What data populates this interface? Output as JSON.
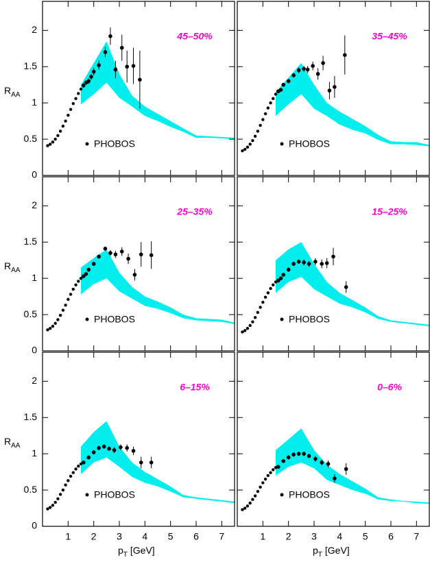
{
  "chart_data": [
    {
      "type": "scatter",
      "label": "45–50%",
      "label_color": "#ff00cc",
      "ylabel": "R",
      "ylabel_sub": "AA",
      "show_ytick_labels": true,
      "show_xtick_labels": false,
      "xlim": [
        0,
        7.5
      ],
      "ylim": [
        0,
        2.4
      ],
      "xticks": [
        1,
        2,
        3,
        4,
        5,
        6,
        7
      ],
      "yticks": [
        0,
        0.5,
        1,
        1.5,
        2
      ],
      "band": {
        "color": "#00eeee",
        "x": [
          1.5,
          2,
          2.5,
          3,
          3.5,
          4,
          4.5,
          5,
          5.5,
          6,
          6.5,
          7,
          7.5
        ],
        "upper": [
          1.25,
          1.55,
          1.85,
          1.4,
          1.1,
          0.95,
          0.85,
          0.75,
          0.65,
          0.55,
          0.54,
          0.53,
          0.52
        ],
        "lower": [
          0.98,
          1.12,
          1.28,
          1.07,
          0.95,
          0.82,
          0.75,
          0.67,
          0.6,
          0.52,
          0.52,
          0.51,
          0.5
        ]
      },
      "series": [
        {
          "name": "PHOBOS",
          "color": "#000000",
          "x": [
            0.2,
            0.3,
            0.4,
            0.5,
            0.6,
            0.7,
            0.8,
            0.9,
            1.0,
            1.1,
            1.2,
            1.3,
            1.4,
            1.5,
            1.6,
            1.7,
            1.8,
            1.9,
            2.0,
            2.2,
            2.45,
            2.65,
            2.85,
            3.1,
            3.3,
            3.55,
            3.8
          ],
          "values": [
            0.41,
            0.43,
            0.46,
            0.5,
            0.55,
            0.61,
            0.68,
            0.75,
            0.83,
            0.91,
            0.99,
            1.06,
            1.13,
            1.19,
            1.24,
            1.28,
            1.3,
            1.36,
            1.43,
            1.52,
            1.7,
            1.92,
            1.46,
            1.76,
            1.5,
            1.51,
            1.32
          ],
          "errors": [
            0.01,
            0.01,
            0.01,
            0.01,
            0.01,
            0.01,
            0.01,
            0.01,
            0.01,
            0.01,
            0.01,
            0.01,
            0.01,
            0.01,
            0.03,
            0.03,
            0.04,
            0.04,
            0.05,
            0.06,
            0.07,
            0.12,
            0.12,
            0.18,
            0.22,
            0.25,
            0.4
          ]
        }
      ]
    },
    {
      "type": "scatter",
      "label": "35–45%",
      "label_color": "#ff00cc",
      "show_ytick_labels": false,
      "show_xtick_labels": false,
      "xlim": [
        0,
        7.5
      ],
      "ylim": [
        0,
        2.4
      ],
      "xticks": [
        1,
        2,
        3,
        4,
        5,
        6,
        7
      ],
      "yticks": [
        0,
        0.5,
        1,
        1.5,
        2
      ],
      "band": {
        "color": "#00eeee",
        "x": [
          1.5,
          2,
          2.5,
          3,
          3.5,
          4,
          4.5,
          5,
          5.5,
          6,
          6.5,
          7,
          7.5
        ],
        "upper": [
          1.15,
          1.35,
          1.55,
          1.25,
          1.0,
          0.88,
          0.78,
          0.68,
          0.56,
          0.47,
          0.46,
          0.46,
          0.42
        ],
        "lower": [
          0.82,
          0.98,
          1.12,
          0.92,
          0.82,
          0.7,
          0.63,
          0.58,
          0.49,
          0.43,
          0.43,
          0.42,
          0.4
        ]
      },
      "series": [
        {
          "name": "PHOBOS",
          "color": "#000000",
          "x": [
            0.2,
            0.3,
            0.4,
            0.5,
            0.6,
            0.7,
            0.8,
            0.9,
            1.0,
            1.1,
            1.2,
            1.3,
            1.4,
            1.5,
            1.6,
            1.7,
            1.8,
            2.0,
            2.2,
            2.4,
            2.6,
            2.75,
            2.95,
            3.15,
            3.35,
            3.6,
            3.8,
            4.2
          ],
          "values": [
            0.34,
            0.36,
            0.39,
            0.43,
            0.48,
            0.54,
            0.61,
            0.69,
            0.77,
            0.85,
            0.93,
            1.0,
            1.06,
            1.12,
            1.16,
            1.18,
            1.25,
            1.3,
            1.38,
            1.45,
            1.47,
            1.46,
            1.51,
            1.4,
            1.55,
            1.17,
            1.22,
            1.66
          ],
          "errors": [
            0.01,
            0.01,
            0.01,
            0.01,
            0.01,
            0.01,
            0.01,
            0.01,
            0.01,
            0.01,
            0.01,
            0.01,
            0.01,
            0.01,
            0.02,
            0.02,
            0.02,
            0.03,
            0.03,
            0.04,
            0.04,
            0.05,
            0.06,
            0.08,
            0.1,
            0.12,
            0.15,
            0.27
          ]
        }
      ]
    },
    {
      "type": "scatter",
      "label": "25–35%",
      "label_color": "#ff00cc",
      "ylabel": "R",
      "ylabel_sub": "AA",
      "show_ytick_labels": true,
      "show_xtick_labels": false,
      "xlim": [
        0,
        7.5
      ],
      "ylim": [
        0,
        2.4
      ],
      "xticks": [
        1,
        2,
        3,
        4,
        5,
        6,
        7
      ],
      "yticks": [
        0,
        0.5,
        1,
        1.5,
        2
      ],
      "band": {
        "color": "#00eeee",
        "x": [
          1.5,
          2,
          2.5,
          3,
          3.5,
          4,
          4.5,
          5,
          5.5,
          6,
          6.5,
          7,
          7.5
        ],
        "upper": [
          1.15,
          1.28,
          1.4,
          1.08,
          0.88,
          0.75,
          0.68,
          0.6,
          0.5,
          0.45,
          0.44,
          0.43,
          0.39
        ],
        "lower": [
          0.78,
          0.92,
          1.0,
          0.82,
          0.72,
          0.62,
          0.58,
          0.52,
          0.45,
          0.42,
          0.41,
          0.4,
          0.37
        ]
      },
      "series": [
        {
          "name": "PHOBOS",
          "color": "#000000",
          "x": [
            0.2,
            0.3,
            0.4,
            0.5,
            0.6,
            0.7,
            0.8,
            0.9,
            1.0,
            1.1,
            1.2,
            1.3,
            1.4,
            1.5,
            1.6,
            1.7,
            1.8,
            2.0,
            2.2,
            2.45,
            2.65,
            2.85,
            3.1,
            3.35,
            3.6,
            3.85,
            4.25
          ],
          "values": [
            0.29,
            0.31,
            0.34,
            0.38,
            0.43,
            0.49,
            0.56,
            0.63,
            0.71,
            0.78,
            0.85,
            0.91,
            0.96,
            1.0,
            1.03,
            1.06,
            1.12,
            1.2,
            1.3,
            1.41,
            1.35,
            1.33,
            1.37,
            1.27,
            1.05,
            1.33,
            1.32
          ],
          "errors": [
            0.01,
            0.01,
            0.01,
            0.01,
            0.01,
            0.01,
            0.01,
            0.01,
            0.01,
            0.01,
            0.01,
            0.01,
            0.01,
            0.01,
            0.02,
            0.02,
            0.02,
            0.03,
            0.03,
            0.03,
            0.04,
            0.05,
            0.06,
            0.07,
            0.08,
            0.17,
            0.19
          ]
        }
      ]
    },
    {
      "type": "scatter",
      "label": "15–25%",
      "label_color": "#ff00cc",
      "show_ytick_labels": false,
      "show_xtick_labels": false,
      "xlim": [
        0,
        7.5
      ],
      "ylim": [
        0,
        2.4
      ],
      "xticks": [
        1,
        2,
        3,
        4,
        5,
        6,
        7
      ],
      "yticks": [
        0,
        0.5,
        1,
        1.5,
        2
      ],
      "band": {
        "color": "#00eeee",
        "x": [
          1.5,
          2,
          2.5,
          3,
          3.5,
          4,
          4.5,
          5,
          5.5,
          6,
          6.5,
          7,
          7.5
        ],
        "upper": [
          1.25,
          1.4,
          1.5,
          1.2,
          0.95,
          0.8,
          0.7,
          0.6,
          0.48,
          0.42,
          0.4,
          0.38,
          0.36
        ],
        "lower": [
          0.8,
          0.95,
          1.02,
          0.85,
          0.75,
          0.65,
          0.6,
          0.53,
          0.44,
          0.4,
          0.38,
          0.36,
          0.34
        ]
      },
      "series": [
        {
          "name": "PHOBOS",
          "color": "#000000",
          "x": [
            0.2,
            0.3,
            0.4,
            0.5,
            0.6,
            0.7,
            0.8,
            0.9,
            1.0,
            1.1,
            1.2,
            1.3,
            1.4,
            1.5,
            1.6,
            1.7,
            1.8,
            2.0,
            2.2,
            2.4,
            2.6,
            2.8,
            3.05,
            3.3,
            3.5,
            3.75,
            4.25
          ],
          "values": [
            0.26,
            0.28,
            0.31,
            0.35,
            0.4,
            0.46,
            0.53,
            0.6,
            0.67,
            0.74,
            0.8,
            0.86,
            0.91,
            0.95,
            0.97,
            1.0,
            1.05,
            1.12,
            1.2,
            1.23,
            1.22,
            1.2,
            1.23,
            1.2,
            1.21,
            1.3,
            0.88
          ],
          "errors": [
            0.01,
            0.01,
            0.01,
            0.01,
            0.01,
            0.01,
            0.01,
            0.01,
            0.01,
            0.01,
            0.01,
            0.01,
            0.01,
            0.01,
            0.02,
            0.02,
            0.02,
            0.03,
            0.03,
            0.03,
            0.04,
            0.04,
            0.05,
            0.06,
            0.07,
            0.12,
            0.08
          ]
        }
      ]
    },
    {
      "type": "scatter",
      "label": "6–15%",
      "label_color": "#ff00cc",
      "ylabel": "R",
      "ylabel_sub": "AA",
      "xlabel": "p",
      "xlabel_sub": "T",
      "xlabel_unit": "[GeV]",
      "show_ytick_labels": true,
      "show_xtick_labels": true,
      "xlim": [
        0,
        7.5
      ],
      "ylim": [
        0,
        2.4
      ],
      "xticks": [
        1,
        2,
        3,
        4,
        5,
        6,
        7
      ],
      "yticks": [
        0,
        0.5,
        1,
        1.5,
        2
      ],
      "band": {
        "color": "#00eeee",
        "x": [
          1.5,
          2,
          2.5,
          3,
          3.5,
          4,
          4.5,
          5,
          5.5,
          6,
          6.5,
          7,
          7.5
        ],
        "upper": [
          1.1,
          1.3,
          1.45,
          1.1,
          0.88,
          0.75,
          0.65,
          0.55,
          0.43,
          0.4,
          0.38,
          0.36,
          0.34
        ],
        "lower": [
          0.72,
          0.88,
          0.95,
          0.82,
          0.68,
          0.6,
          0.55,
          0.48,
          0.4,
          0.38,
          0.36,
          0.34,
          0.32
        ]
      },
      "series": [
        {
          "name": "PHOBOS",
          "color": "#000000",
          "x": [
            0.2,
            0.3,
            0.4,
            0.5,
            0.6,
            0.7,
            0.8,
            0.9,
            1.0,
            1.1,
            1.2,
            1.3,
            1.4,
            1.5,
            1.6,
            1.8,
            2.0,
            2.2,
            2.4,
            2.6,
            2.8,
            3.05,
            3.3,
            3.55,
            3.85,
            4.25
          ],
          "values": [
            0.24,
            0.26,
            0.29,
            0.33,
            0.38,
            0.44,
            0.5,
            0.57,
            0.63,
            0.69,
            0.74,
            0.79,
            0.83,
            0.86,
            0.88,
            0.95,
            1.02,
            1.08,
            1.1,
            1.07,
            1.05,
            1.09,
            1.08,
            1.04,
            0.88,
            0.88
          ],
          "errors": [
            0.01,
            0.01,
            0.01,
            0.01,
            0.01,
            0.01,
            0.01,
            0.01,
            0.01,
            0.01,
            0.01,
            0.01,
            0.01,
            0.01,
            0.02,
            0.02,
            0.03,
            0.03,
            0.03,
            0.03,
            0.04,
            0.04,
            0.05,
            0.06,
            0.08,
            0.08
          ]
        }
      ]
    },
    {
      "type": "scatter",
      "label": "0–6%",
      "label_color": "#ff00cc",
      "xlabel": "p",
      "xlabel_sub": "T",
      "xlabel_unit": "[GeV]",
      "show_ytick_labels": false,
      "show_xtick_labels": true,
      "xlim": [
        0,
        7.5
      ],
      "ylim": [
        0,
        2.4
      ],
      "xticks": [
        1,
        2,
        3,
        4,
        5,
        6,
        7
      ],
      "yticks": [
        0,
        0.5,
        1,
        1.5,
        2
      ],
      "band": {
        "color": "#00eeee",
        "x": [
          1.5,
          2,
          2.5,
          3,
          3.5,
          4,
          4.5,
          5,
          5.5,
          6,
          6.5,
          7,
          7.5
        ],
        "upper": [
          1.05,
          1.2,
          1.35,
          1.05,
          0.85,
          0.72,
          0.62,
          0.52,
          0.4,
          0.37,
          0.35,
          0.34,
          0.33
        ],
        "lower": [
          0.7,
          0.82,
          0.88,
          0.8,
          0.64,
          0.57,
          0.5,
          0.45,
          0.37,
          0.35,
          0.34,
          0.32,
          0.31
        ]
      },
      "series": [
        {
          "name": "PHOBOS",
          "color": "#000000",
          "x": [
            0.2,
            0.3,
            0.4,
            0.5,
            0.6,
            0.7,
            0.8,
            0.9,
            1.0,
            1.1,
            1.2,
            1.3,
            1.4,
            1.5,
            1.6,
            1.8,
            2.0,
            2.2,
            2.4,
            2.6,
            2.8,
            3.05,
            3.3,
            3.55,
            3.8,
            4.25
          ],
          "values": [
            0.23,
            0.25,
            0.28,
            0.32,
            0.37,
            0.42,
            0.48,
            0.54,
            0.6,
            0.65,
            0.7,
            0.74,
            0.78,
            0.81,
            0.82,
            0.9,
            0.95,
            0.99,
            1.0,
            1.0,
            0.97,
            0.93,
            0.88,
            0.86,
            0.66,
            0.79
          ],
          "errors": [
            0.01,
            0.01,
            0.01,
            0.01,
            0.01,
            0.01,
            0.01,
            0.01,
            0.01,
            0.01,
            0.01,
            0.01,
            0.01,
            0.01,
            0.02,
            0.02,
            0.03,
            0.03,
            0.03,
            0.03,
            0.03,
            0.04,
            0.04,
            0.05,
            0.06,
            0.08
          ]
        }
      ]
    }
  ]
}
